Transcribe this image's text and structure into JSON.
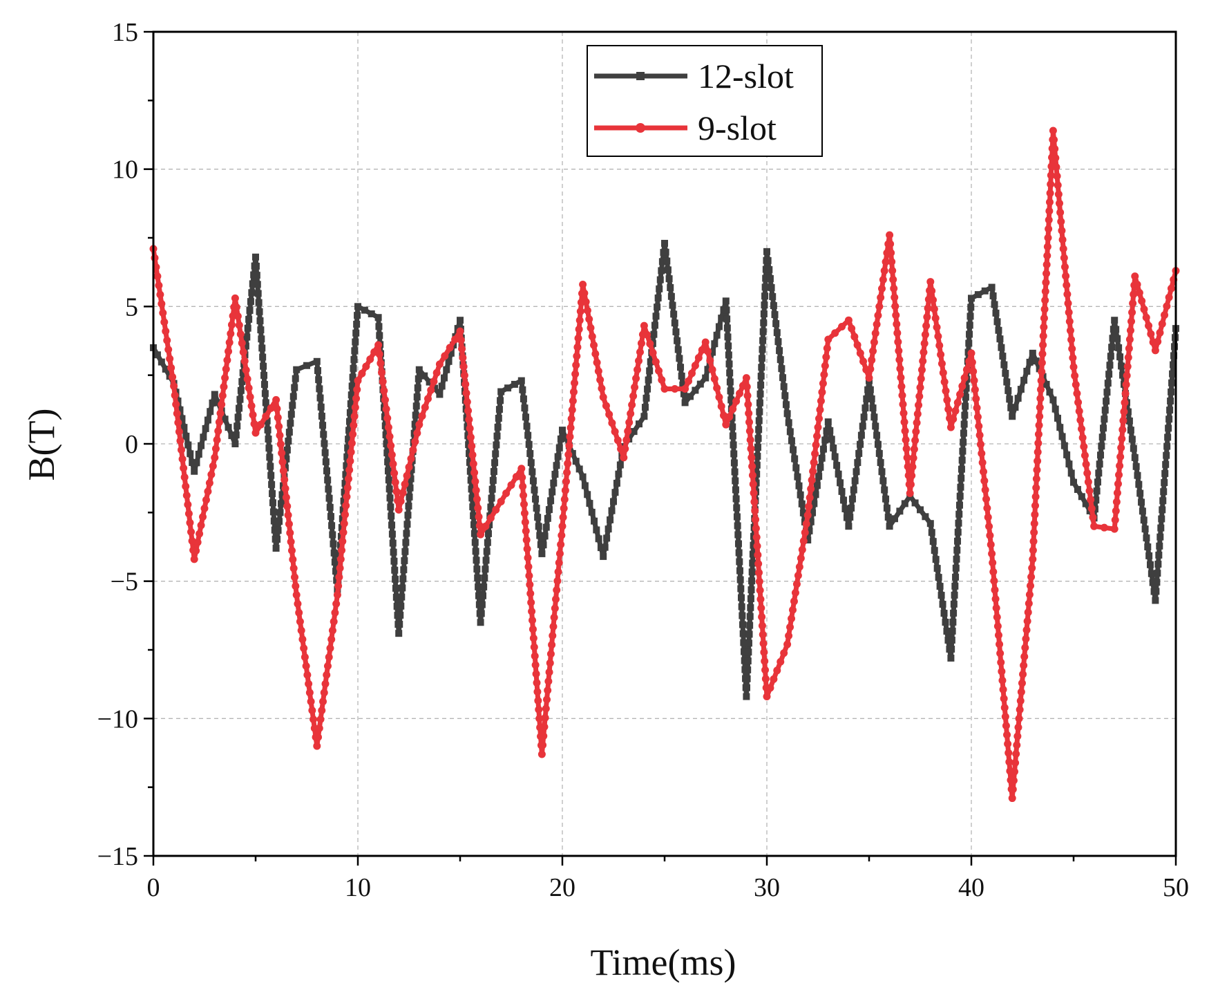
{
  "chart_data": {
    "type": "line",
    "title": "",
    "xlabel": "Time(ms)",
    "ylabel": "B(T)",
    "xlim": [
      0,
      50
    ],
    "ylim": [
      -15,
      15
    ],
    "xticks": [
      0,
      10,
      20,
      30,
      40,
      50
    ],
    "yticks": [
      -15,
      -10,
      -5,
      0,
      5,
      10,
      15
    ],
    "xtick_labels": [
      "0",
      "10",
      "20",
      "30",
      "40",
      "50"
    ],
    "ytick_labels": [
      "−15",
      "−10",
      "−5",
      "0",
      "5",
      "10",
      "15"
    ],
    "grid": true,
    "legend_position": "top-center",
    "x": [
      0,
      1,
      2,
      3,
      4,
      5,
      6,
      7,
      8,
      9,
      10,
      11,
      12,
      13,
      14,
      15,
      16,
      17,
      18,
      19,
      20,
      21,
      22,
      23,
      24,
      25,
      26,
      27,
      28,
      29,
      30,
      31,
      32,
      33,
      34,
      35,
      36,
      37,
      38,
      39,
      40,
      41,
      42,
      43,
      44,
      45,
      46,
      47,
      48,
      49,
      50
    ],
    "series": [
      {
        "name": "12-slot",
        "color": "#3f3f3f",
        "marker": "square",
        "values": [
          3.5,
          2.2,
          -1.0,
          1.8,
          0.0,
          6.8,
          -3.8,
          2.7,
          3.0,
          -5.3,
          5.0,
          4.6,
          -6.9,
          2.7,
          1.8,
          4.5,
          -6.5,
          1.9,
          2.3,
          -4.0,
          0.5,
          -1.2,
          -4.1,
          -0.1,
          1.0,
          7.3,
          1.5,
          2.4,
          5.2,
          -9.2,
          7.0,
          1.1,
          -3.5,
          0.8,
          -3.0,
          2.3,
          -3.0,
          -1.9,
          -2.9,
          -7.8,
          5.3,
          5.7,
          1.0,
          3.3,
          1.6,
          -1.4,
          -2.7,
          4.5,
          -0.5,
          -5.7,
          4.2
        ]
      },
      {
        "name": "9-slot",
        "color": "#e8343a",
        "marker": "circle",
        "values": [
          7.1,
          2.1,
          -4.2,
          -0.5,
          5.3,
          0.4,
          1.6,
          -5.5,
          -11.0,
          -5.5,
          2.3,
          3.6,
          -2.4,
          0.7,
          2.9,
          4.1,
          -3.3,
          -2.1,
          -0.9,
          -11.3,
          -3.0,
          5.8,
          1.7,
          -0.5,
          4.3,
          2.0,
          2.0,
          3.7,
          0.7,
          2.4,
          -9.2,
          -7.3,
          -2.6,
          3.8,
          4.5,
          2.4,
          7.6,
          -1.8,
          5.9,
          0.6,
          3.3,
          -4.0,
          -12.9,
          -4.2,
          11.4,
          2.8,
          -3.0,
          -3.1,
          6.1,
          3.4,
          6.3
        ]
      }
    ]
  }
}
